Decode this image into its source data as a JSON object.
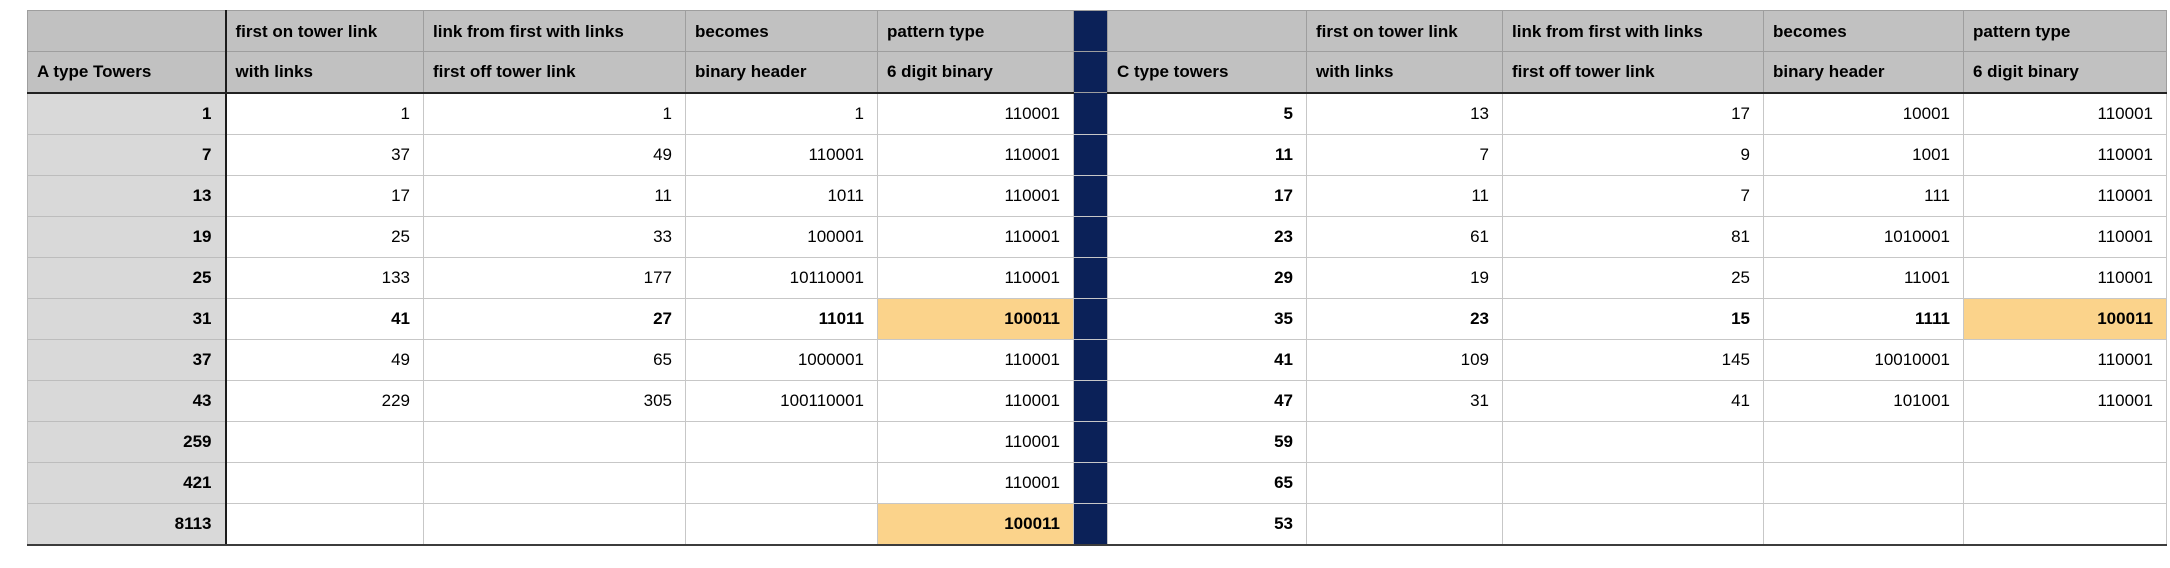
{
  "colors": {
    "header_bg": "#c1c1c1",
    "label_bg": "#d9d9d9",
    "divider_bg": "#0b2158",
    "highlight_bg": "#fbd38b"
  },
  "left_table": {
    "header_row1": [
      "",
      "first on tower link",
      "link from first with links",
      "becomes",
      "pattern type"
    ],
    "header_row2": [
      "A type Towers",
      "with links",
      "first off tower link",
      "binary header",
      "6 digit binary"
    ],
    "rows": [
      {
        "tower": "1",
        "with_links": "1",
        "first_off": "1",
        "binary_header": "1",
        "pattern": "110001"
      },
      {
        "tower": "7",
        "with_links": "37",
        "first_off": "49",
        "binary_header": "110001",
        "pattern": "110001"
      },
      {
        "tower": "13",
        "with_links": "17",
        "first_off": "11",
        "binary_header": "1011",
        "pattern": "110001"
      },
      {
        "tower": "19",
        "with_links": "25",
        "first_off": "33",
        "binary_header": "100001",
        "pattern": "110001"
      },
      {
        "tower": "25",
        "with_links": "133",
        "first_off": "177",
        "binary_header": "10110001",
        "pattern": "110001"
      },
      {
        "tower": "31",
        "with_links": "41",
        "first_off": "27",
        "binary_header": "11011",
        "pattern": "100011",
        "bold": true,
        "highlight": true
      },
      {
        "tower": "37",
        "with_links": "49",
        "first_off": "65",
        "binary_header": "1000001",
        "pattern": "110001"
      },
      {
        "tower": "43",
        "with_links": "229",
        "first_off": "305",
        "binary_header": "100110001",
        "pattern": "110001"
      },
      {
        "tower": "259",
        "with_links": "",
        "first_off": "",
        "binary_header": "",
        "pattern": "110001"
      },
      {
        "tower": "421",
        "with_links": "",
        "first_off": "",
        "binary_header": "",
        "pattern": "110001"
      },
      {
        "tower": "8113",
        "with_links": "",
        "first_off": "",
        "binary_header": "",
        "pattern": "100011",
        "pattern_bold": true,
        "highlight": true
      }
    ]
  },
  "right_table": {
    "header_row1": [
      "",
      "first on tower link",
      "link from first with links",
      "becomes",
      "pattern type"
    ],
    "header_row2": [
      "C type towers",
      "with links",
      "first off tower link",
      "binary header",
      "6 digit binary"
    ],
    "rows": [
      {
        "tower": "5",
        "with_links": "13",
        "first_off": "17",
        "binary_header": "10001",
        "pattern": "110001"
      },
      {
        "tower": "11",
        "with_links": "7",
        "first_off": "9",
        "binary_header": "1001",
        "pattern": "110001"
      },
      {
        "tower": "17",
        "with_links": "11",
        "first_off": "7",
        "binary_header": "111",
        "pattern": "110001"
      },
      {
        "tower": "23",
        "with_links": "61",
        "first_off": "81",
        "binary_header": "1010001",
        "pattern": "110001"
      },
      {
        "tower": "29",
        "with_links": "19",
        "first_off": "25",
        "binary_header": "11001",
        "pattern": "110001"
      },
      {
        "tower": "35",
        "with_links": "23",
        "first_off": "15",
        "binary_header": "1111",
        "pattern": "100011",
        "bold": true,
        "highlight": true
      },
      {
        "tower": "41",
        "with_links": "109",
        "first_off": "145",
        "binary_header": "10010001",
        "pattern": "110001"
      },
      {
        "tower": "47",
        "with_links": "31",
        "first_off": "41",
        "binary_header": "101001",
        "pattern": "110001"
      },
      {
        "tower": "59",
        "with_links": "",
        "first_off": "",
        "binary_header": "",
        "pattern": ""
      },
      {
        "tower": "65",
        "with_links": "",
        "first_off": "",
        "binary_header": "",
        "pattern": ""
      },
      {
        "tower": "53",
        "with_links": "",
        "first_off": "",
        "binary_header": "",
        "pattern": ""
      }
    ]
  }
}
